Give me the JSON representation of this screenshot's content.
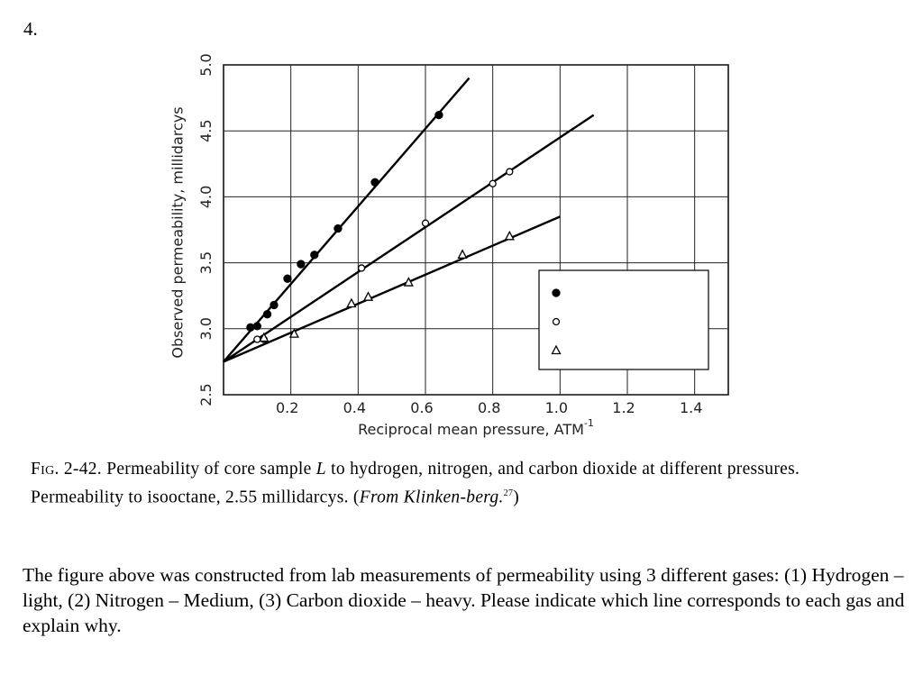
{
  "question_number": "4.",
  "chart_data": {
    "type": "scatter",
    "x_label": "Reciprocal mean pressure, ATM",
    "x_label_superscript": "-1",
    "y_label": "Observed permeability, millidarcys",
    "xlim": [
      0,
      1.5
    ],
    "xticks": [
      0.2,
      0.4,
      0.6,
      0.8,
      {
        "value": 1,
        "label": "1.0"
      },
      1.2,
      1.4
    ],
    "ylim": [
      2.5,
      5.0
    ],
    "yticks": [
      2.5,
      {
        "value": 3,
        "label": "3.0"
      },
      3.5,
      {
        "value": 4,
        "label": "4.0"
      },
      4.5,
      {
        "value": 5,
        "label": "5.0"
      }
    ],
    "grid": true,
    "legend_position": "lower-right",
    "series": [
      {
        "marker": "filled-circle",
        "color": "#000000",
        "x": [
          0.08,
          0.1,
          0.13,
          0.15,
          0.19,
          0.23,
          0.27,
          0.34,
          0.45,
          0.64
        ],
        "values": [
          3.01,
          3.02,
          3.11,
          3.18,
          3.38,
          3.49,
          3.56,
          3.76,
          4.11,
          4.62
        ],
        "fit_x": [
          0,
          0.73
        ],
        "fit_values": [
          2.75,
          4.9
        ]
      },
      {
        "marker": "open-circle",
        "color": "#000000",
        "x": [
          0.1,
          0.12,
          0.41,
          0.6,
          0.8,
          0.85
        ],
        "values": [
          2.92,
          2.92,
          3.46,
          3.8,
          4.1,
          4.19
        ],
        "fit_x": [
          0,
          1.1
        ],
        "fit_values": [
          2.75,
          4.62
        ]
      },
      {
        "marker": "open-triangle",
        "color": "#000000",
        "x": [
          0.12,
          0.21,
          0.38,
          0.43,
          0.55,
          0.71,
          0.85
        ],
        "values": [
          2.93,
          2.96,
          3.19,
          3.24,
          3.35,
          3.56,
          3.7
        ],
        "fit_x": [
          0,
          1.0
        ],
        "fit_values": [
          2.75,
          3.85
        ]
      }
    ]
  },
  "caption": {
    "label": "Fig. 2-42.",
    "text_before": "Permeability of core sample",
    "variable": "L",
    "text_after": "to hydrogen, nitrogen, and carbon dioxide at different pressures. Permeability to isooctane, 2.55 millidarcys. (",
    "source": "From Klinken-berg.",
    "reference": "27",
    "close": ")"
  },
  "question": "The figure above was constructed from lab measurements of permeability using 3 different gases: (1) Hydrogen – light, (2) Nitrogen – Medium, (3) Carbon dioxide – heavy. Please indicate which line corresponds to each gas and explain why."
}
